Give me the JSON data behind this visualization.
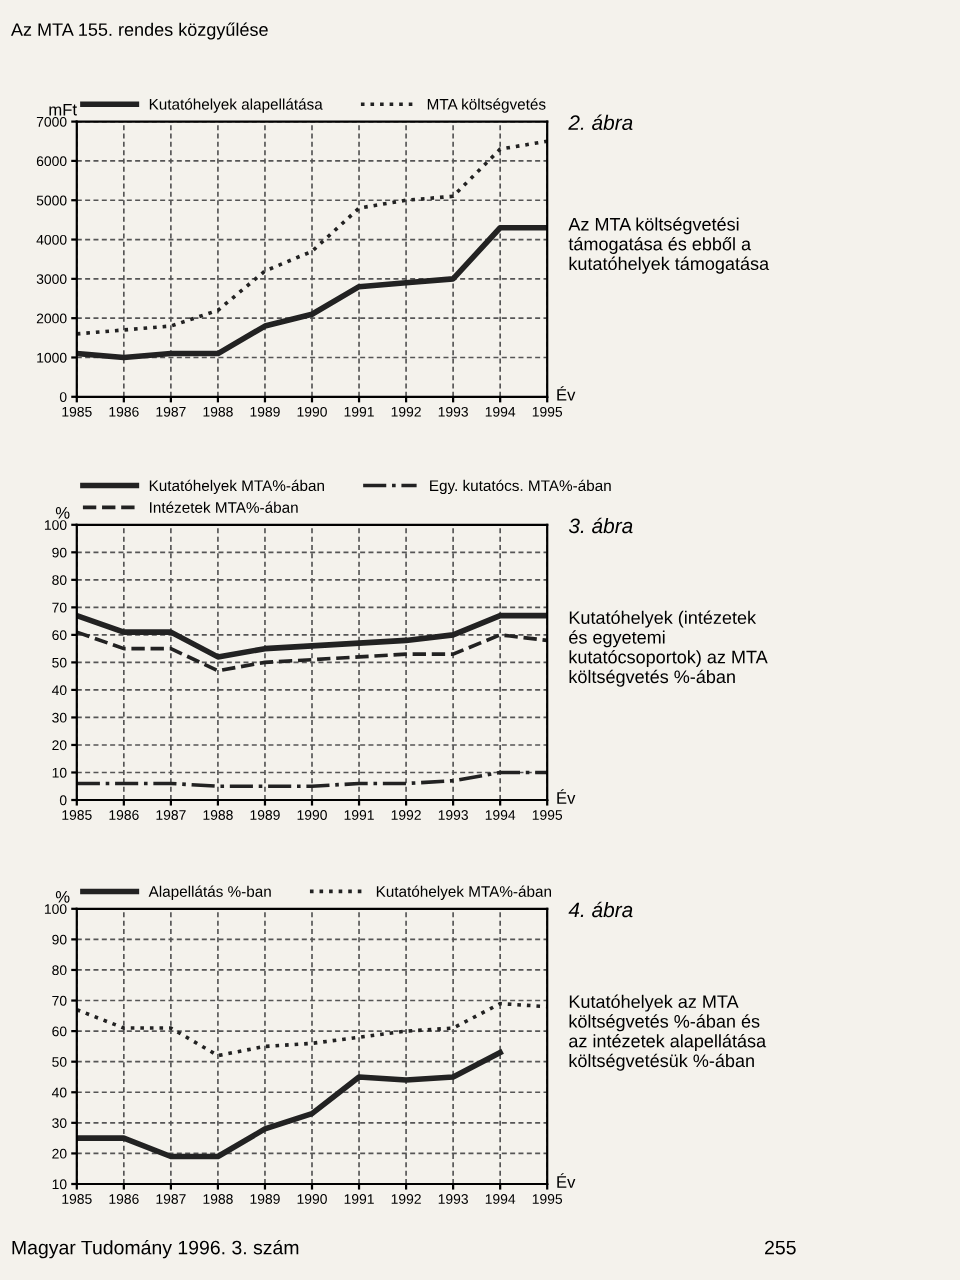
{
  "chart_data": [
    {
      "type": "line",
      "title": "2. ábra",
      "subtitle": "Az MTA költségvetési támogatása és ebből a kutatóhelyek támogatása",
      "xlabel": "Év",
      "ylabel": "mFt",
      "annotations": [
        "Az MTA 155. rendes közgyűlése"
      ],
      "x": [
        1985,
        1986,
        1987,
        1988,
        1989,
        1990,
        1991,
        1992,
        1993,
        1994,
        1995
      ],
      "series": [
        {
          "name": "Kutatóhelyek alapellátása",
          "color": "#222222",
          "line_style": "solid",
          "values": [
            1100,
            1000,
            1100,
            1100,
            1800,
            2100,
            2800,
            2900,
            3000,
            4300,
            4300
          ]
        },
        {
          "name": "MTA költségvetés",
          "color": "#222222",
          "line_style": "dotted",
          "values": [
            1600,
            1700,
            1800,
            2200,
            3200,
            3700,
            4800,
            5000,
            5100,
            6300,
            6500
          ]
        }
      ],
      "xlim": [
        1985,
        1995
      ],
      "xticks": [
        1985,
        1986,
        1987,
        1988,
        1989,
        1990,
        1991,
        1992,
        1993,
        1994,
        1995
      ],
      "ylim": [
        0,
        7000
      ],
      "yticks": [
        0,
        1000,
        2000,
        3000,
        4000,
        5000,
        6000,
        7000
      ],
      "grid": true,
      "legend": "top"
    },
    {
      "type": "line",
      "title": "3. ábra",
      "subtitle": "Kutatóhelyek (intézetek és egyetemi kutatócsoportok) az MTA költségvetés %-ában",
      "xlabel": "Év",
      "ylabel": "%",
      "x": [
        1985,
        1986,
        1987,
        1988,
        1989,
        1990,
        1991,
        1992,
        1993,
        1994,
        1995
      ],
      "series": [
        {
          "name": "Kutatóhelyek MTA%-ában",
          "color": "#222222",
          "line_style": "solid",
          "values": [
            67,
            61,
            61,
            52,
            55,
            56,
            57,
            58,
            60,
            67,
            67
          ]
        },
        {
          "name": "Intézetek MTA%-ában",
          "color": "#222222",
          "line_style": "dashed",
          "values": [
            61,
            55,
            55,
            47,
            50,
            51,
            52,
            53,
            53,
            60,
            58
          ]
        },
        {
          "name": "Egy. kutatócs. MTA%-ában",
          "color": "#222222",
          "line_style": "dashdot",
          "values": [
            6,
            6,
            6,
            5,
            5,
            5,
            6,
            6,
            7,
            10,
            10
          ]
        }
      ],
      "xlim": [
        1985,
        1995
      ],
      "xticks": [
        1985,
        1986,
        1987,
        1988,
        1989,
        1990,
        1991,
        1992,
        1993,
        1994,
        1995
      ],
      "ylim": [
        0,
        100
      ],
      "yticks": [
        0,
        10,
        20,
        30,
        40,
        50,
        60,
        70,
        80,
        90,
        100
      ],
      "grid": true,
      "legend": "top"
    },
    {
      "type": "line",
      "title": "4. ábra",
      "subtitle": "Kutatóhelyek az MTA költségvetés %-ában és az intézetek alapellátása költségvetésük %-ában",
      "xlabel": "Év",
      "ylabel": "%",
      "annotations": [
        "Magyar Tudomány 1996. 3. szám",
        "255"
      ],
      "x": [
        1985,
        1986,
        1987,
        1988,
        1989,
        1990,
        1991,
        1992,
        1993,
        1994,
        1995
      ],
      "series": [
        {
          "name": "Alapellátás %-ban",
          "color": "#222222",
          "line_style": "solid",
          "values": [
            25,
            25,
            19,
            19,
            28,
            33,
            45,
            44,
            45,
            53,
            null
          ]
        },
        {
          "name": "Kutatóhelyek MTA%-ában",
          "color": "#222222",
          "line_style": "dotted",
          "values": [
            67,
            61,
            61,
            52,
            55,
            56,
            58,
            60,
            61,
            69,
            68
          ]
        }
      ],
      "xlim": [
        1985,
        1995
      ],
      "xticks": [
        1985,
        1986,
        1987,
        1988,
        1989,
        1990,
        1991,
        1992,
        1993,
        1994,
        1995
      ],
      "ylim": [
        10,
        100
      ],
      "yticks": [
        10,
        20,
        30,
        40,
        50,
        60,
        70,
        80,
        90,
        100
      ],
      "grid": true,
      "legend": "top"
    }
  ]
}
